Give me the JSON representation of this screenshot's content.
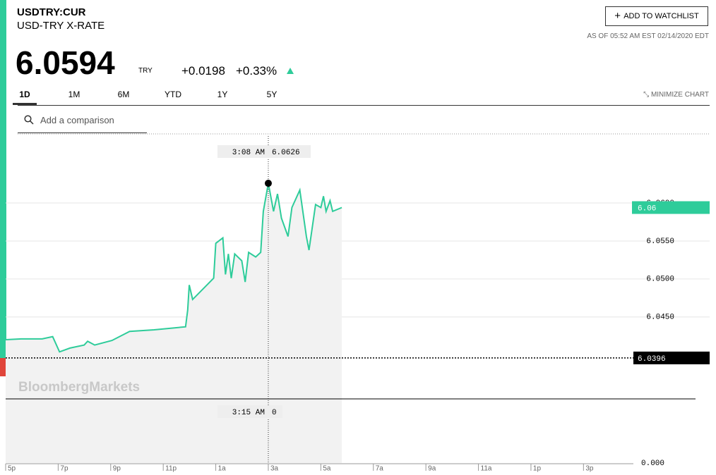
{
  "header": {
    "ticker": "USDTRY:CUR",
    "name": "USD-TRY X-RATE",
    "price": "6.0594",
    "currency": "TRY",
    "change": "+0.0198",
    "change_pct": "+0.33%",
    "watchlist_button": "ADD TO WATCHLIST",
    "as_of": "AS OF 05:52 AM EST 02/14/2020 EDT"
  },
  "tabs": [
    "1D",
    "1M",
    "6M",
    "YTD",
    "1Y",
    "5Y"
  ],
  "minimize": "MINIMIZE CHART",
  "comparison_placeholder": "Add a comparison",
  "chart_data": {
    "type": "line",
    "watermark": "BloombergMarkets",
    "xlim": [
      0,
      23.9
    ],
    "xticks": [
      {
        "value": 0,
        "label": "5p"
      },
      {
        "value": 2,
        "label": "7p"
      },
      {
        "value": 4,
        "label": "9p"
      },
      {
        "value": 6,
        "label": "11p"
      },
      {
        "value": 8,
        "label": "1a"
      },
      {
        "value": 10,
        "label": "3a"
      },
      {
        "value": 12,
        "label": "5a"
      },
      {
        "value": 14,
        "label": "7a"
      },
      {
        "value": 16,
        "label": "9a"
      },
      {
        "value": 18,
        "label": "11a"
      },
      {
        "value": 20,
        "label": "1p"
      },
      {
        "value": 22,
        "label": "3p"
      }
    ],
    "ylim": [
      6.0343,
      6.0691
    ],
    "yticks": [
      {
        "value": 6.06,
        "label": "6.0600"
      },
      {
        "value": 6.055,
        "label": "6.0550"
      },
      {
        "value": 6.05,
        "label": "6.0500"
      },
      {
        "value": 6.045,
        "label": "6.0450"
      }
    ],
    "series": [
      {
        "color": "#2ecc9a",
        "x": [
          0,
          0.59,
          1.39,
          1.79,
          2.05,
          2.45,
          2.99,
          3.12,
          3.39,
          4.05,
          4.72,
          5.65,
          6.85,
          6.93,
          6.99,
          7.12,
          7.52,
          7.92,
          8.0,
          8.27,
          8.37,
          8.48,
          8.59,
          8.72,
          8.99,
          9.12,
          9.25,
          9.52,
          9.71,
          9.81,
          10.0,
          10.2,
          10.35,
          10.5,
          10.75,
          10.9,
          11.2,
          11.45,
          11.55,
          11.8,
          12.0,
          12.1,
          12.2,
          12.35,
          12.45,
          12.8
        ],
        "values": [
          6.042,
          6.0421,
          6.0421,
          6.0424,
          6.0404,
          6.0409,
          6.0413,
          6.0418,
          6.0413,
          6.0419,
          6.0431,
          6.0433,
          6.0437,
          6.0459,
          6.0492,
          6.0473,
          6.0487,
          6.0501,
          6.0547,
          6.0554,
          6.0506,
          6.0533,
          6.0501,
          6.0533,
          6.0524,
          6.0496,
          6.0535,
          6.0529,
          6.0535,
          6.0589,
          6.0626,
          6.0589,
          6.0612,
          6.058,
          6.0556,
          6.0594,
          6.0617,
          6.0556,
          6.0538,
          6.0598,
          6.0594,
          6.0609,
          6.0589,
          6.0603,
          6.0589,
          6.0594
        ]
      }
    ],
    "last_label": {
      "value": 6.0594,
      "label": "6.06"
    },
    "prev_close": 6.0396,
    "crosshair": {
      "x": 10.0,
      "time_label": "3:08 AM",
      "value": 6.0626
    },
    "volume_crosshair": {
      "time_label": "3:15 AM",
      "value": 0
    },
    "volume_ylim": [
      0,
      1
    ],
    "volume_yticks": [
      {
        "value": 0,
        "label": "0.000"
      }
    ]
  }
}
